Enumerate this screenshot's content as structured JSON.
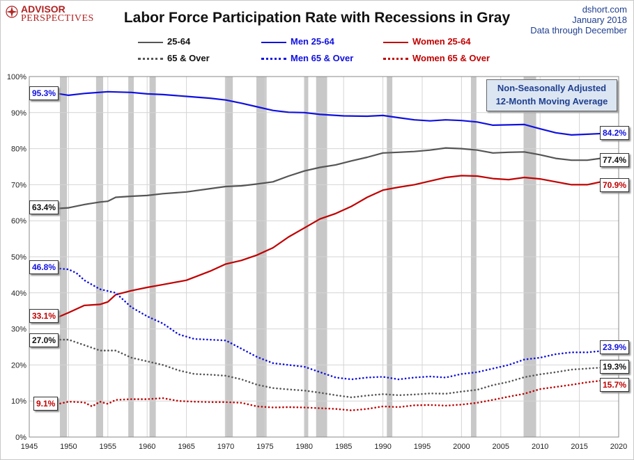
{
  "header": {
    "logo_line1": "ADVISOR",
    "logo_line2": "PERSPECTIVES",
    "title": "Labor Force Participation Rate with Recessions in Gray",
    "source_line1": "dshort.com",
    "source_line2": "January 2018",
    "source_line3": "Data through December",
    "note_line1": "Non-Seasonally Adjusted",
    "note_line2": "12-Month Moving Average"
  },
  "colors": {
    "all": "#555555",
    "men": "#1010e0",
    "women": "#c00000",
    "recession": "#c8c8c8",
    "grid": "#d4d4d4"
  },
  "chart_data": {
    "type": "line",
    "title": "Labor Force Participation Rate with Recessions in Gray",
    "xlim": [
      1945,
      2020
    ],
    "ylim": [
      0,
      100
    ],
    "x_ticks": [
      1945,
      1950,
      1955,
      1960,
      1965,
      1970,
      1975,
      1980,
      1985,
      1990,
      1995,
      2000,
      2005,
      2010,
      2015,
      2020
    ],
    "y_ticks": [
      0,
      10,
      20,
      30,
      40,
      50,
      60,
      70,
      80,
      90,
      100
    ],
    "y_tick_labels": [
      "0%",
      "10%",
      "20%",
      "30%",
      "40%",
      "50%",
      "60%",
      "70%",
      "80%",
      "90%",
      "100%"
    ],
    "grid": true,
    "recessions": [
      [
        1948.9,
        1949.8
      ],
      [
        1953.5,
        1954.4
      ],
      [
        1957.6,
        1958.3
      ],
      [
        1960.3,
        1961.1
      ],
      [
        1969.9,
        1970.9
      ],
      [
        1973.9,
        1975.2
      ],
      [
        1980.0,
        1980.5
      ],
      [
        1981.5,
        1982.9
      ],
      [
        1990.5,
        1991.2
      ],
      [
        2001.2,
        2001.9
      ],
      [
        2007.9,
        2009.5
      ]
    ],
    "series": [
      {
        "name": "25-64",
        "style": "solid",
        "color": "all",
        "label": "63.4%",
        "end_label": "77.4%",
        "x": [
          1948.5,
          1950,
          1952,
          1954,
          1955,
          1956,
          1958,
          1960,
          1962,
          1965,
          1968,
          1970,
          1972,
          1974,
          1976,
          1978,
          1980,
          1982,
          1984,
          1986,
          1988,
          1990,
          1992,
          1994,
          1996,
          1998,
          2000,
          2002,
          2004,
          2006,
          2008,
          2010,
          2012,
          2014,
          2016,
          2018
        ],
        "y": [
          63.4,
          63.6,
          64.5,
          65.2,
          65.4,
          66.5,
          66.8,
          67.0,
          67.5,
          68.0,
          68.9,
          69.5,
          69.7,
          70.2,
          70.8,
          72.4,
          73.8,
          74.8,
          75.5,
          76.6,
          77.6,
          78.8,
          79.0,
          79.2,
          79.6,
          80.2,
          80.0,
          79.6,
          78.8,
          79.0,
          79.1,
          78.3,
          77.3,
          76.8,
          76.8,
          77.4
        ]
      },
      {
        "name": "Men 25-64",
        "style": "solid",
        "color": "men",
        "label": "95.3%",
        "end_label": "84.2%",
        "x": [
          1948.5,
          1950,
          1952,
          1955,
          1958,
          1960,
          1962,
          1965,
          1968,
          1970,
          1972,
          1974,
          1976,
          1978,
          1980,
          1982,
          1985,
          1988,
          1990,
          1992,
          1994,
          1996,
          1998,
          2000,
          2002,
          2004,
          2006,
          2008,
          2010,
          2012,
          2014,
          2016,
          2018
        ],
        "y": [
          95.3,
          94.8,
          95.3,
          95.8,
          95.6,
          95.2,
          95.0,
          94.5,
          94.0,
          93.5,
          92.6,
          91.6,
          90.6,
          90.1,
          90.0,
          89.5,
          89.1,
          89.0,
          89.2,
          88.6,
          88.0,
          87.7,
          88.0,
          87.8,
          87.4,
          86.5,
          86.6,
          86.7,
          85.5,
          84.4,
          83.8,
          84.0,
          84.2
        ]
      },
      {
        "name": "Women 25-64",
        "style": "solid",
        "color": "women",
        "label": "33.1%",
        "end_label": "70.9%",
        "x": [
          1948.5,
          1950,
          1952,
          1954,
          1955,
          1956,
          1958,
          1960,
          1962,
          1965,
          1968,
          1970,
          1972,
          1974,
          1976,
          1978,
          1980,
          1982,
          1984,
          1986,
          1988,
          1990,
          1992,
          1994,
          1996,
          1998,
          2000,
          2002,
          2004,
          2006,
          2008,
          2010,
          2012,
          2014,
          2016,
          2018
        ],
        "y": [
          33.1,
          34.5,
          36.5,
          36.8,
          37.5,
          39.5,
          40.6,
          41.5,
          42.3,
          43.5,
          46.0,
          48.0,
          49.0,
          50.5,
          52.5,
          55.5,
          58.0,
          60.5,
          62.0,
          64.0,
          66.5,
          68.5,
          69.3,
          70.0,
          71.0,
          72.0,
          72.5,
          72.4,
          71.7,
          71.4,
          72.0,
          71.6,
          70.8,
          70.0,
          70.0,
          70.9
        ]
      },
      {
        "name": "65 & Over",
        "style": "dotted",
        "color": "all",
        "label": "27.0%",
        "end_label": "19.3%",
        "x": [
          1948.5,
          1950,
          1952,
          1954,
          1956,
          1958,
          1960,
          1962,
          1964,
          1966,
          1968,
          1970,
          1972,
          1974,
          1976,
          1978,
          1980,
          1982,
          1984,
          1986,
          1988,
          1990,
          1992,
          1994,
          1996,
          1998,
          2000,
          2002,
          2004,
          2006,
          2008,
          2010,
          2012,
          2014,
          2016,
          2018
        ],
        "y": [
          27.0,
          27.0,
          25.5,
          24.0,
          24.0,
          22.0,
          21.0,
          20.0,
          18.5,
          17.5,
          17.3,
          17.0,
          16.0,
          14.5,
          13.6,
          13.2,
          12.9,
          12.3,
          11.6,
          11.0,
          11.5,
          11.9,
          11.6,
          11.8,
          12.1,
          12.0,
          12.6,
          13.1,
          14.4,
          15.3,
          16.6,
          17.4,
          18.0,
          18.7,
          19.0,
          19.3
        ]
      },
      {
        "name": "Men 65 & Over",
        "style": "dotted",
        "color": "men",
        "label": "46.8%",
        "end_label": "23.9%",
        "x": [
          1948.5,
          1950,
          1951,
          1952,
          1954,
          1956,
          1958,
          1960,
          1962,
          1964,
          1966,
          1968,
          1970,
          1972,
          1974,
          1976,
          1978,
          1980,
          1982,
          1984,
          1986,
          1988,
          1990,
          1992,
          1994,
          1996,
          1998,
          2000,
          2002,
          2004,
          2006,
          2008,
          2010,
          2012,
          2014,
          2016,
          2018
        ],
        "y": [
          46.8,
          46.5,
          45.5,
          43.5,
          41.0,
          40.0,
          36.0,
          33.5,
          31.5,
          28.5,
          27.2,
          27.0,
          26.8,
          24.5,
          22.2,
          20.5,
          20.0,
          19.5,
          18.0,
          16.5,
          16.0,
          16.5,
          16.7,
          16.0,
          16.5,
          16.8,
          16.5,
          17.5,
          18.0,
          19.0,
          20.0,
          21.5,
          22.0,
          23.0,
          23.5,
          23.5,
          23.9
        ]
      },
      {
        "name": "Women 65 & Over",
        "style": "dotted",
        "color": "women",
        "label": "9.1%",
        "end_label": "15.7%",
        "x": [
          1948.5,
          1950,
          1952,
          1953,
          1954,
          1955,
          1956,
          1958,
          1960,
          1962,
          1964,
          1966,
          1968,
          1970,
          1972,
          1974,
          1976,
          1978,
          1980,
          1982,
          1984,
          1986,
          1988,
          1990,
          1992,
          1994,
          1996,
          1998,
          2000,
          2002,
          2004,
          2006,
          2008,
          2010,
          2012,
          2014,
          2016,
          2018
        ],
        "y": [
          9.1,
          9.8,
          9.6,
          8.5,
          9.8,
          9.2,
          10.3,
          10.5,
          10.5,
          10.8,
          10.0,
          9.8,
          9.7,
          9.7,
          9.5,
          8.5,
          8.2,
          8.3,
          8.2,
          8.0,
          7.8,
          7.4,
          7.8,
          8.5,
          8.3,
          8.8,
          8.9,
          8.7,
          9.0,
          9.5,
          10.3,
          11.2,
          12.0,
          13.3,
          13.9,
          14.5,
          15.2,
          15.7
        ]
      }
    ]
  }
}
